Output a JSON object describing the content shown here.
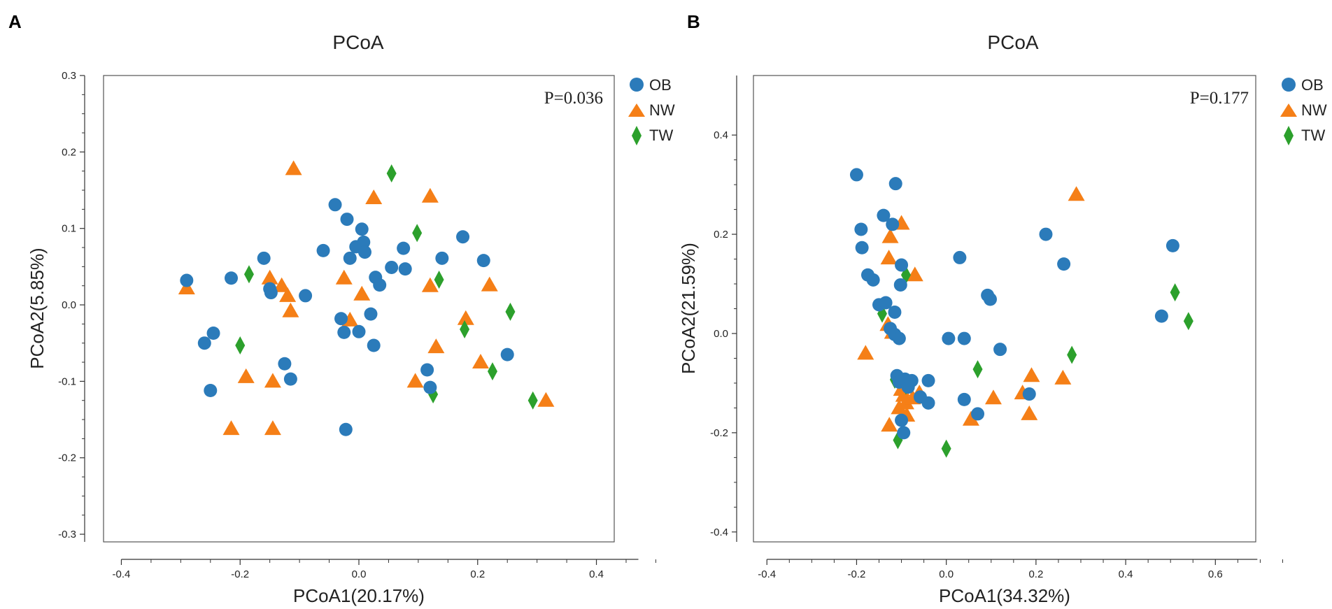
{
  "colors": {
    "OB": "#2b7bba",
    "NW": "#f57f17",
    "TW": "#2ca02c"
  },
  "chart_data": [
    {
      "type": "scatter",
      "panel_label": "A",
      "title": "PCoA",
      "xlabel": "PCoA1(20.17%)",
      "ylabel": "PCoA2(5.85%)",
      "annotation": "P=0.036",
      "xlim": [
        -0.43,
        0.43
      ],
      "ylim": [
        -0.31,
        0.3
      ],
      "xticks": [
        -0.4,
        -0.2,
        0.0,
        0.2,
        0.4
      ],
      "xtick_labels": [
        "-0.4",
        "-0.2",
        "0.0",
        "0.2",
        "0.4"
      ],
      "yticks": [
        -0.3,
        -0.2,
        -0.1,
        0.0,
        0.1,
        0.2,
        0.3
      ],
      "ytick_labels": [
        "-0.3",
        "-0.2",
        "-0.1",
        "0.0",
        "0.1",
        "0.2",
        "0.3"
      ],
      "legend": [
        "OB",
        "NW",
        "TW"
      ],
      "series": [
        {
          "name": "OB",
          "marker": "circle",
          "points": [
            [
              -0.29,
              0.032
            ],
            [
              -0.215,
              0.035
            ],
            [
              -0.245,
              -0.037
            ],
            [
              -0.26,
              -0.05
            ],
            [
              -0.25,
              -0.112
            ],
            [
              -0.16,
              0.061
            ],
            [
              -0.15,
              0.021
            ],
            [
              -0.148,
              0.016
            ],
            [
              -0.125,
              -0.077
            ],
            [
              -0.115,
              -0.097
            ],
            [
              -0.09,
              0.012
            ],
            [
              -0.06,
              0.071
            ],
            [
              -0.04,
              0.131
            ],
            [
              -0.03,
              -0.018
            ],
            [
              -0.025,
              -0.036
            ],
            [
              -0.02,
              0.112
            ],
            [
              -0.015,
              0.061
            ],
            [
              -0.005,
              0.076
            ],
            [
              0.005,
              0.099
            ],
            [
              0.008,
              0.082
            ],
            [
              0.01,
              0.069
            ],
            [
              0.0,
              -0.035
            ],
            [
              -0.022,
              -0.163
            ],
            [
              0.02,
              -0.012
            ],
            [
              0.025,
              -0.053
            ],
            [
              0.028,
              0.036
            ],
            [
              0.035,
              0.026
            ],
            [
              0.055,
              0.049
            ],
            [
              0.075,
              0.074
            ],
            [
              0.078,
              0.047
            ],
            [
              0.14,
              0.061
            ],
            [
              0.175,
              0.089
            ],
            [
              0.21,
              0.058
            ],
            [
              0.115,
              -0.085
            ],
            [
              0.12,
              -0.108
            ],
            [
              0.25,
              -0.065
            ]
          ]
        },
        {
          "name": "NW",
          "marker": "triangle",
          "points": [
            [
              -0.29,
              0.022
            ],
            [
              -0.215,
              -0.162
            ],
            [
              -0.19,
              -0.094
            ],
            [
              -0.15,
              0.035
            ],
            [
              -0.145,
              -0.1
            ],
            [
              -0.145,
              -0.162
            ],
            [
              -0.13,
              0.025
            ],
            [
              -0.12,
              0.012
            ],
            [
              -0.115,
              -0.008
            ],
            [
              -0.11,
              0.178
            ],
            [
              -0.025,
              0.035
            ],
            [
              -0.015,
              -0.02
            ],
            [
              0.005,
              0.014
            ],
            [
              0.025,
              0.14
            ],
            [
              0.095,
              -0.1
            ],
            [
              0.12,
              0.142
            ],
            [
              0.12,
              0.025
            ],
            [
              0.13,
              -0.055
            ],
            [
              0.18,
              -0.018
            ],
            [
              0.205,
              -0.075
            ],
            [
              0.22,
              0.026
            ],
            [
              0.315,
              -0.125
            ]
          ]
        },
        {
          "name": "TW",
          "marker": "diamond",
          "points": [
            [
              -0.185,
              0.04
            ],
            [
              -0.2,
              -0.053
            ],
            [
              0.055,
              0.172
            ],
            [
              0.098,
              0.094
            ],
            [
              0.135,
              0.033
            ],
            [
              0.125,
              -0.117
            ],
            [
              0.178,
              -0.032
            ],
            [
              0.225,
              -0.087
            ],
            [
              0.255,
              -0.009
            ],
            [
              0.293,
              -0.125
            ]
          ]
        }
      ]
    },
    {
      "type": "scatter",
      "panel_label": "B",
      "title": "PCoA",
      "xlabel": "PCoA1(34.32%)",
      "ylabel": "PCoA2(21.59%)",
      "annotation": "P=0.177",
      "xlim": [
        -0.43,
        0.69
      ],
      "ylim": [
        -0.42,
        0.52
      ],
      "xticks": [
        -0.4,
        -0.2,
        0.0,
        0.2,
        0.4,
        0.6
      ],
      "xtick_labels": [
        "-0.4",
        "-0.2",
        "0.0",
        "0.2",
        "0.4",
        "0.6"
      ],
      "yticks": [
        -0.4,
        -0.2,
        0.0,
        0.2,
        0.4
      ],
      "ytick_labels": [
        "-0.4",
        "-0.2",
        "0.0",
        "0.2",
        "0.4"
      ],
      "legend": [
        "OB",
        "NW",
        "TW"
      ],
      "series": [
        {
          "name": "OB",
          "marker": "circle",
          "points": [
            [
              -0.2,
              0.32
            ],
            [
              -0.19,
              0.21
            ],
            [
              -0.188,
              0.173
            ],
            [
              -0.175,
              0.118
            ],
            [
              -0.163,
              0.108
            ],
            [
              -0.15,
              0.058
            ],
            [
              -0.14,
              0.238
            ],
            [
              -0.135,
              0.062
            ],
            [
              -0.12,
              0.22
            ],
            [
              -0.113,
              0.302
            ],
            [
              -0.115,
              0.043
            ],
            [
              -0.125,
              0.01
            ],
            [
              -0.115,
              -0.002
            ],
            [
              -0.105,
              -0.01
            ],
            [
              -0.102,
              0.098
            ],
            [
              -0.1,
              0.138
            ],
            [
              -0.11,
              -0.085
            ],
            [
              -0.105,
              -0.098
            ],
            [
              -0.092,
              -0.092
            ],
            [
              -0.085,
              -0.108
            ],
            [
              -0.077,
              -0.095
            ],
            [
              -0.058,
              -0.128
            ],
            [
              -0.04,
              -0.095
            ],
            [
              -0.04,
              -0.14
            ],
            [
              -0.1,
              -0.175
            ],
            [
              -0.095,
              -0.2
            ],
            [
              0.005,
              -0.01
            ],
            [
              0.03,
              0.153
            ],
            [
              0.04,
              -0.01
            ],
            [
              0.04,
              -0.133
            ],
            [
              0.092,
              0.077
            ],
            [
              0.098,
              0.069
            ],
            [
              0.12,
              -0.032
            ],
            [
              0.07,
              -0.162
            ],
            [
              0.185,
              -0.122
            ],
            [
              0.222,
              0.2
            ],
            [
              0.262,
              0.14
            ],
            [
              0.48,
              0.035
            ],
            [
              0.505,
              0.177
            ]
          ]
        },
        {
          "name": "NW",
          "marker": "triangle",
          "points": [
            [
              -0.18,
              -0.04
            ],
            [
              -0.13,
              0.018
            ],
            [
              -0.128,
              0.152
            ],
            [
              -0.125,
              0.195
            ],
            [
              -0.12,
              0.002
            ],
            [
              -0.1,
              0.222
            ],
            [
              -0.07,
              0.118
            ],
            [
              -0.127,
              -0.185
            ],
            [
              -0.105,
              -0.15
            ],
            [
              -0.1,
              -0.113
            ],
            [
              -0.095,
              -0.125
            ],
            [
              -0.09,
              -0.14
            ],
            [
              -0.088,
              -0.165
            ],
            [
              -0.075,
              -0.13
            ],
            [
              -0.06,
              -0.12
            ],
            [
              0.055,
              -0.173
            ],
            [
              0.105,
              -0.13
            ],
            [
              0.17,
              -0.12
            ],
            [
              0.185,
              -0.162
            ],
            [
              0.19,
              -0.085
            ],
            [
              0.26,
              -0.09
            ],
            [
              0.29,
              0.28
            ]
          ]
        },
        {
          "name": "TW",
          "marker": "diamond",
          "points": [
            [
              -0.143,
              0.04
            ],
            [
              -0.09,
              0.118
            ],
            [
              -0.115,
              -0.093
            ],
            [
              -0.108,
              -0.215
            ],
            [
              -0.09,
              -0.105
            ],
            [
              0.0,
              -0.232
            ],
            [
              0.07,
              -0.072
            ],
            [
              0.28,
              -0.043
            ],
            [
              0.51,
              0.083
            ],
            [
              0.54,
              0.025
            ]
          ]
        }
      ]
    }
  ]
}
